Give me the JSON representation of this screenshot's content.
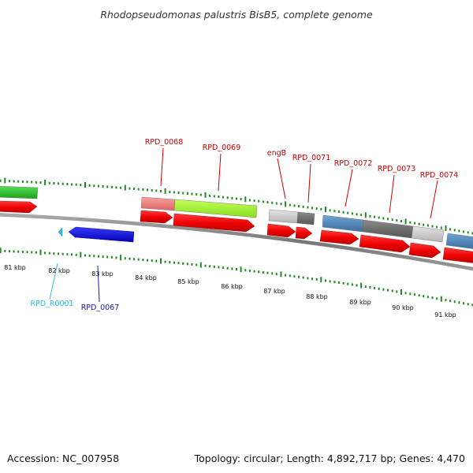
{
  "title": "Rhodopseudomonas palustris BisB5, complete genome",
  "footer": {
    "accession": "Accession: NC_007958",
    "stats": "Topology: circular; Length: 4,892,717 bp; Genes: 4,470"
  },
  "ticks": [
    "81 kbp",
    "82 kbp",
    "83 kbp",
    "84 kbp",
    "85 kbp",
    "86 kbp",
    "87 kbp",
    "88 kbp",
    "89 kbp",
    "90 kbp",
    "91 kbp"
  ],
  "gene_labels": {
    "upper": [
      {
        "name": "RPD_0068",
        "color": "#cc0000"
      },
      {
        "name": "RPD_0069",
        "color": "#cc0000"
      },
      {
        "name": "engB",
        "color": "#cc0000"
      },
      {
        "name": "RPD_0071",
        "color": "#cc0000"
      },
      {
        "name": "RPD_0072",
        "color": "#cc0000"
      },
      {
        "name": "RPD_0073",
        "color": "#cc0000"
      },
      {
        "name": "RPD_0074",
        "color": "#cc0000"
      }
    ],
    "lower": [
      {
        "name": "RPD_R0001",
        "color": "#33bbdd"
      },
      {
        "name": "RPD_0067",
        "color": "#1a1aaa"
      }
    ]
  },
  "colors": {
    "backbone": "#888888",
    "cds": "#ee0000",
    "tick_green": "#228822",
    "minus_strand_gene": "#1010dd",
    "rna_gene": "#33bbdd"
  }
}
